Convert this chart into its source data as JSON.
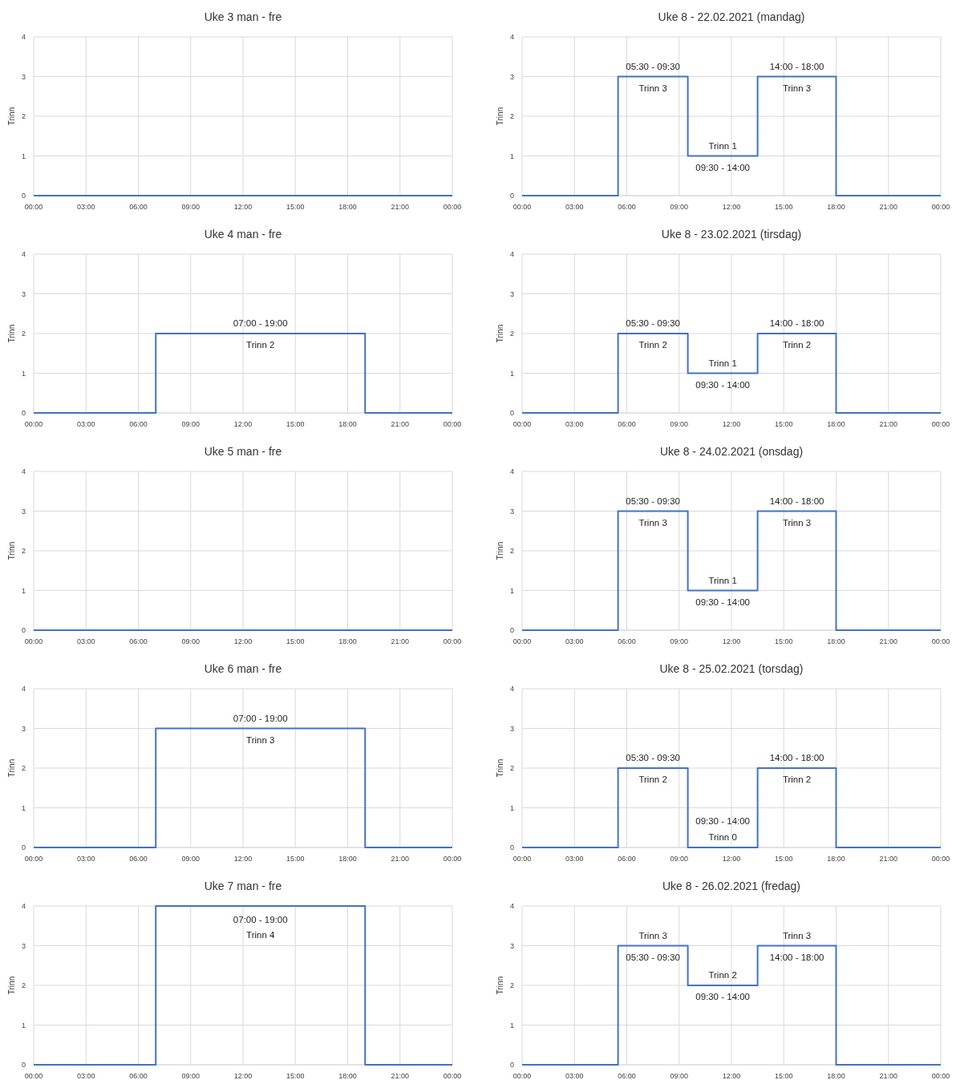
{
  "chart_data": [
    {
      "type": "step",
      "title": "Uke 3 man - fre",
      "ylabel": "Trinn",
      "xlim": [
        0,
        24
      ],
      "ylim": [
        0,
        4
      ],
      "yticks": [
        0,
        1,
        2,
        3,
        4
      ],
      "xticks": [
        {
          "value": 0,
          "label": "00:00"
        },
        {
          "value": 3,
          "label": "03:00"
        },
        {
          "value": 6,
          "label": "06:00"
        },
        {
          "value": 9,
          "label": "09:00"
        },
        {
          "value": 12,
          "label": "12:00"
        },
        {
          "value": 15,
          "label": "15:00"
        },
        {
          "value": 18,
          "label": "18:00"
        },
        {
          "value": 21,
          "label": "21:00"
        },
        {
          "value": 24,
          "label": "00:00"
        }
      ],
      "grid": true,
      "series": [
        {
          "color": "#4472c4",
          "x": [
            0,
            24
          ],
          "values": [
            0,
            0
          ]
        }
      ]
    },
    {
      "type": "step",
      "title": "Uke 8 - 22.02.2021 (mandag)",
      "ylabel": "Trinn",
      "xlim": [
        0,
        24
      ],
      "ylim": [
        0,
        4
      ],
      "yticks": [
        0,
        1,
        2,
        3,
        4
      ],
      "xticks": [
        {
          "value": 0,
          "label": "00:00"
        },
        {
          "value": 3,
          "label": "03:00"
        },
        {
          "value": 6,
          "label": "06:00"
        },
        {
          "value": 9,
          "label": "09:00"
        },
        {
          "value": 12,
          "label": "12:00"
        },
        {
          "value": 15,
          "label": "15:00"
        },
        {
          "value": 18,
          "label": "18:00"
        },
        {
          "value": 21,
          "label": "21:00"
        },
        {
          "value": 24,
          "label": "00:00"
        }
      ],
      "grid": true,
      "series": [
        {
          "color": "#4472c4",
          "x": [
            0,
            5.5,
            9.5,
            13.5,
            18,
            24
          ],
          "values": [
            0,
            3,
            1,
            3,
            0,
            0
          ]
        }
      ],
      "annotations": [
        {
          "text": "05:30 - 09:30",
          "x": 7.5,
          "y": 3
        },
        {
          "text": "Trinn 3",
          "x": 7.5,
          "y": 3
        },
        {
          "text": "14:00 - 18:00",
          "x": 15.75,
          "y": 3
        },
        {
          "text": "Trinn 3",
          "x": 15.75,
          "y": 3
        },
        {
          "text": "Trinn 1",
          "x": 11.5,
          "y": 1
        },
        {
          "text": "09:30 - 14:00",
          "x": 11.5,
          "y": 1
        }
      ]
    },
    {
      "type": "step",
      "title": "Uke 4 man - fre",
      "ylabel": "Trinn",
      "xlim": [
        0,
        24
      ],
      "ylim": [
        0,
        4
      ],
      "yticks": [
        0,
        1,
        2,
        3,
        4
      ],
      "xticks": [
        {
          "value": 0,
          "label": "00:00"
        },
        {
          "value": 3,
          "label": "03:00"
        },
        {
          "value": 6,
          "label": "06:00"
        },
        {
          "value": 9,
          "label": "09:00"
        },
        {
          "value": 12,
          "label": "12:00"
        },
        {
          "value": 15,
          "label": "15:00"
        },
        {
          "value": 18,
          "label": "18:00"
        },
        {
          "value": 21,
          "label": "21:00"
        },
        {
          "value": 24,
          "label": "00:00"
        }
      ],
      "grid": true,
      "series": [
        {
          "color": "#4472c4",
          "x": [
            0,
            7,
            19,
            24
          ],
          "values": [
            0,
            2,
            0,
            0
          ]
        }
      ],
      "annotations": [
        {
          "text": "07:00 - 19:00",
          "x": 13,
          "y": 2
        },
        {
          "text": "Trinn 2",
          "x": 13,
          "y": 2
        }
      ]
    },
    {
      "type": "step",
      "title": "Uke 8 - 23.02.2021 (tirsdag)",
      "ylabel": "Trinn",
      "xlim": [
        0,
        24
      ],
      "ylim": [
        0,
        4
      ],
      "yticks": [
        0,
        1,
        2,
        3,
        4
      ],
      "xticks": [
        {
          "value": 0,
          "label": "00:00"
        },
        {
          "value": 3,
          "label": "03:00"
        },
        {
          "value": 6,
          "label": "06:00"
        },
        {
          "value": 9,
          "label": "09:00"
        },
        {
          "value": 12,
          "label": "12:00"
        },
        {
          "value": 15,
          "label": "15:00"
        },
        {
          "value": 18,
          "label": "18:00"
        },
        {
          "value": 21,
          "label": "21:00"
        },
        {
          "value": 24,
          "label": "00:00"
        }
      ],
      "grid": true,
      "series": [
        {
          "color": "#4472c4",
          "x": [
            0,
            5.5,
            9.5,
            13.5,
            18,
            24
          ],
          "values": [
            0,
            2,
            1,
            2,
            0,
            0
          ]
        }
      ],
      "annotations": [
        {
          "text": "05:30 - 09:30",
          "x": 7.5,
          "y": 2
        },
        {
          "text": "Trinn 2",
          "x": 7.5,
          "y": 2
        },
        {
          "text": "14:00 - 18:00",
          "x": 15.75,
          "y": 2
        },
        {
          "text": "Trinn 2",
          "x": 15.75,
          "y": 2
        },
        {
          "text": "Trinn 1",
          "x": 11.5,
          "y": 1
        },
        {
          "text": "09:30 - 14:00",
          "x": 11.5,
          "y": 1
        }
      ]
    },
    {
      "type": "step",
      "title": "Uke 5 man - fre",
      "ylabel": "Trinn",
      "xlim": [
        0,
        24
      ],
      "ylim": [
        0,
        4
      ],
      "yticks": [
        0,
        1,
        2,
        3,
        4
      ],
      "xticks": [
        {
          "value": 0,
          "label": "00:00"
        },
        {
          "value": 3,
          "label": "03:00"
        },
        {
          "value": 6,
          "label": "06:00"
        },
        {
          "value": 9,
          "label": "09:00"
        },
        {
          "value": 12,
          "label": "12:00"
        },
        {
          "value": 15,
          "label": "15:00"
        },
        {
          "value": 18,
          "label": "18:00"
        },
        {
          "value": 21,
          "label": "21:00"
        },
        {
          "value": 24,
          "label": "00:00"
        }
      ],
      "grid": true,
      "series": [
        {
          "color": "#4472c4",
          "x": [
            0,
            24
          ],
          "values": [
            0,
            0
          ]
        }
      ]
    },
    {
      "type": "step",
      "title": "Uke 8 - 24.02.2021 (onsdag)",
      "ylabel": "Trinn",
      "xlim": [
        0,
        24
      ],
      "ylim": [
        0,
        4
      ],
      "yticks": [
        0,
        1,
        2,
        3,
        4
      ],
      "xticks": [
        {
          "value": 0,
          "label": "00:00"
        },
        {
          "value": 3,
          "label": "03:00"
        },
        {
          "value": 6,
          "label": "06:00"
        },
        {
          "value": 9,
          "label": "09:00"
        },
        {
          "value": 12,
          "label": "12:00"
        },
        {
          "value": 15,
          "label": "15:00"
        },
        {
          "value": 18,
          "label": "18:00"
        },
        {
          "value": 21,
          "label": "21:00"
        },
        {
          "value": 24,
          "label": "00:00"
        }
      ],
      "grid": true,
      "series": [
        {
          "color": "#4472c4",
          "x": [
            0,
            5.5,
            9.5,
            13.5,
            18,
            24
          ],
          "values": [
            0,
            3,
            1,
            3,
            0,
            0
          ]
        }
      ],
      "annotations": [
        {
          "text": "05:30 - 09:30",
          "x": 7.5,
          "y": 3
        },
        {
          "text": "Trinn 3",
          "x": 7.5,
          "y": 3
        },
        {
          "text": "14:00 - 18:00",
          "x": 15.75,
          "y": 3
        },
        {
          "text": "Trinn 3",
          "x": 15.75,
          "y": 3
        },
        {
          "text": "Trinn 1",
          "x": 11.5,
          "y": 1
        },
        {
          "text": "09:30 - 14:00",
          "x": 11.5,
          "y": 1
        }
      ]
    },
    {
      "type": "step",
      "title": "Uke 6 man - fre",
      "ylabel": "Trinn",
      "xlim": [
        0,
        24
      ],
      "ylim": [
        0,
        4
      ],
      "yticks": [
        0,
        1,
        2,
        3,
        4
      ],
      "xticks": [
        {
          "value": 0,
          "label": "00:00"
        },
        {
          "value": 3,
          "label": "03:00"
        },
        {
          "value": 6,
          "label": "06:00"
        },
        {
          "value": 9,
          "label": "09:00"
        },
        {
          "value": 12,
          "label": "12:00"
        },
        {
          "value": 15,
          "label": "15:00"
        },
        {
          "value": 18,
          "label": "18:00"
        },
        {
          "value": 21,
          "label": "21:00"
        },
        {
          "value": 24,
          "label": "00:00"
        }
      ],
      "grid": true,
      "series": [
        {
          "color": "#4472c4",
          "x": [
            0,
            7,
            19,
            24
          ],
          "values": [
            0,
            3,
            0,
            0
          ]
        }
      ],
      "annotations": [
        {
          "text": "07:00 - 19:00",
          "x": 13,
          "y": 3
        },
        {
          "text": "Trinn 3",
          "x": 13,
          "y": 3
        }
      ]
    },
    {
      "type": "step",
      "title": "Uke 8 - 25.02.2021 (torsdag)",
      "ylabel": "Trinn",
      "xlim": [
        0,
        24
      ],
      "ylim": [
        0,
        4
      ],
      "yticks": [
        0,
        1,
        2,
        3,
        4
      ],
      "xticks": [
        {
          "value": 0,
          "label": "00:00"
        },
        {
          "value": 3,
          "label": "03:00"
        },
        {
          "value": 6,
          "label": "06:00"
        },
        {
          "value": 9,
          "label": "09:00"
        },
        {
          "value": 12,
          "label": "12:00"
        },
        {
          "value": 15,
          "label": "15:00"
        },
        {
          "value": 18,
          "label": "18:00"
        },
        {
          "value": 21,
          "label": "21:00"
        },
        {
          "value": 24,
          "label": "00:00"
        }
      ],
      "grid": true,
      "series": [
        {
          "color": "#4472c4",
          "x": [
            0,
            5.5,
            9.5,
            13.5,
            18,
            24
          ],
          "values": [
            0,
            2,
            0,
            2,
            0,
            0
          ]
        }
      ],
      "annotations": [
        {
          "text": "05:30 - 09:30",
          "x": 7.5,
          "y": 2
        },
        {
          "text": "Trinn 2",
          "x": 7.5,
          "y": 2
        },
        {
          "text": "14:00 - 18:00",
          "x": 15.75,
          "y": 2
        },
        {
          "text": "Trinn 2",
          "x": 15.75,
          "y": 2
        },
        {
          "text": "09:30 - 14:00",
          "x": 11.5,
          "y": 0
        },
        {
          "text": "Trinn 0",
          "x": 11.5,
          "y": 0
        }
      ]
    },
    {
      "type": "step",
      "title": "Uke 7 man - fre",
      "ylabel": "Trinn",
      "xlim": [
        0,
        24
      ],
      "ylim": [
        0,
        4
      ],
      "yticks": [
        0,
        1,
        2,
        3,
        4
      ],
      "xticks": [
        {
          "value": 0,
          "label": "00:00"
        },
        {
          "value": 3,
          "label": "03:00"
        },
        {
          "value": 6,
          "label": "06:00"
        },
        {
          "value": 9,
          "label": "09:00"
        },
        {
          "value": 12,
          "label": "12:00"
        },
        {
          "value": 15,
          "label": "15:00"
        },
        {
          "value": 18,
          "label": "18:00"
        },
        {
          "value": 21,
          "label": "21:00"
        },
        {
          "value": 24,
          "label": "00:00"
        }
      ],
      "grid": true,
      "series": [
        {
          "color": "#4472c4",
          "x": [
            0,
            7,
            19,
            24
          ],
          "values": [
            0,
            4,
            0,
            0
          ]
        }
      ],
      "annotations": [
        {
          "text": "07:00 - 19:00",
          "x": 13,
          "y": 4
        },
        {
          "text": "Trinn 4",
          "x": 13,
          "y": 4
        }
      ]
    },
    {
      "type": "step",
      "title": "Uke 8 - 26.02.2021 (fredag)",
      "ylabel": "Trinn",
      "xlim": [
        0,
        24
      ],
      "ylim": [
        0,
        4
      ],
      "yticks": [
        0,
        1,
        2,
        3,
        4
      ],
      "xticks": [
        {
          "value": 0,
          "label": "00:00"
        },
        {
          "value": 3,
          "label": "03:00"
        },
        {
          "value": 6,
          "label": "06:00"
        },
        {
          "value": 9,
          "label": "09:00"
        },
        {
          "value": 12,
          "label": "12:00"
        },
        {
          "value": 15,
          "label": "15:00"
        },
        {
          "value": 18,
          "label": "18:00"
        },
        {
          "value": 21,
          "label": "21:00"
        },
        {
          "value": 24,
          "label": "00:00"
        }
      ],
      "grid": true,
      "series": [
        {
          "color": "#4472c4",
          "x": [
            0,
            5.5,
            9.5,
            13.5,
            18,
            24
          ],
          "values": [
            0,
            3,
            2,
            3,
            0,
            0
          ]
        }
      ],
      "annotations": [
        {
          "text": "Trinn 3",
          "x": 7.5,
          "y": 3
        },
        {
          "text": "05:30 - 09:30",
          "x": 7.5,
          "y": 3
        },
        {
          "text": "Trinn 2",
          "x": 11.5,
          "y": 2
        },
        {
          "text": "09:30 - 14:00",
          "x": 11.5,
          "y": 2
        },
        {
          "text": "Trinn 3",
          "x": 15.75,
          "y": 3
        },
        {
          "text": "14:00 - 18:00",
          "x": 15.75,
          "y": 3
        }
      ]
    }
  ]
}
